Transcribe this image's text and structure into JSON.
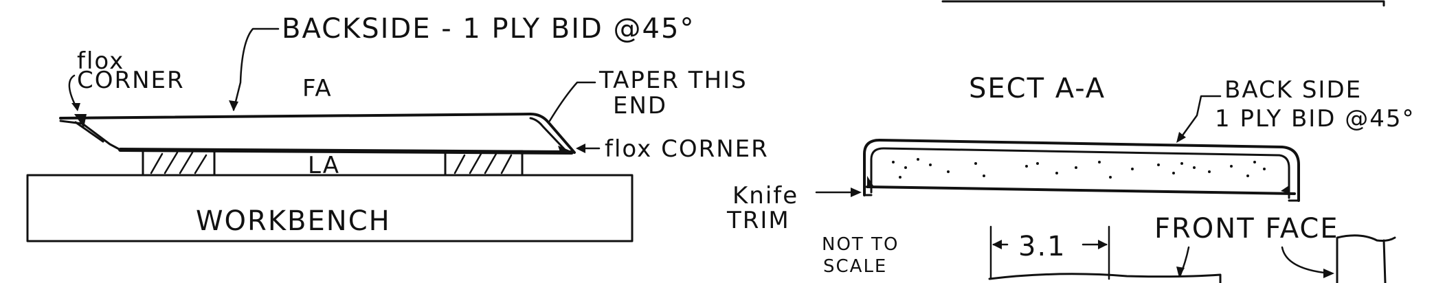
{
  "left_view": {
    "backside_note": "BACKSIDE - 1 PLY BID @45°",
    "flox_corner_left": [
      "flox",
      "CORNER"
    ],
    "fa_label": "FA",
    "la_label": "LA",
    "taper_note": [
      "TAPER THIS",
      "END"
    ],
    "flox_corner_right": "flox CORNER",
    "workbench_label": "WORKBENCH"
  },
  "section_view": {
    "title": "SECT A-A",
    "backside_note": [
      "BACK SIDE",
      "1 PLY BID @45°"
    ],
    "knife_trim_note": [
      "Knife",
      "TRIM"
    ],
    "scale_note": [
      "NOT TO",
      "SCALE"
    ],
    "dimension_label": "3.1",
    "front_face_label": "FRONT FACE"
  }
}
